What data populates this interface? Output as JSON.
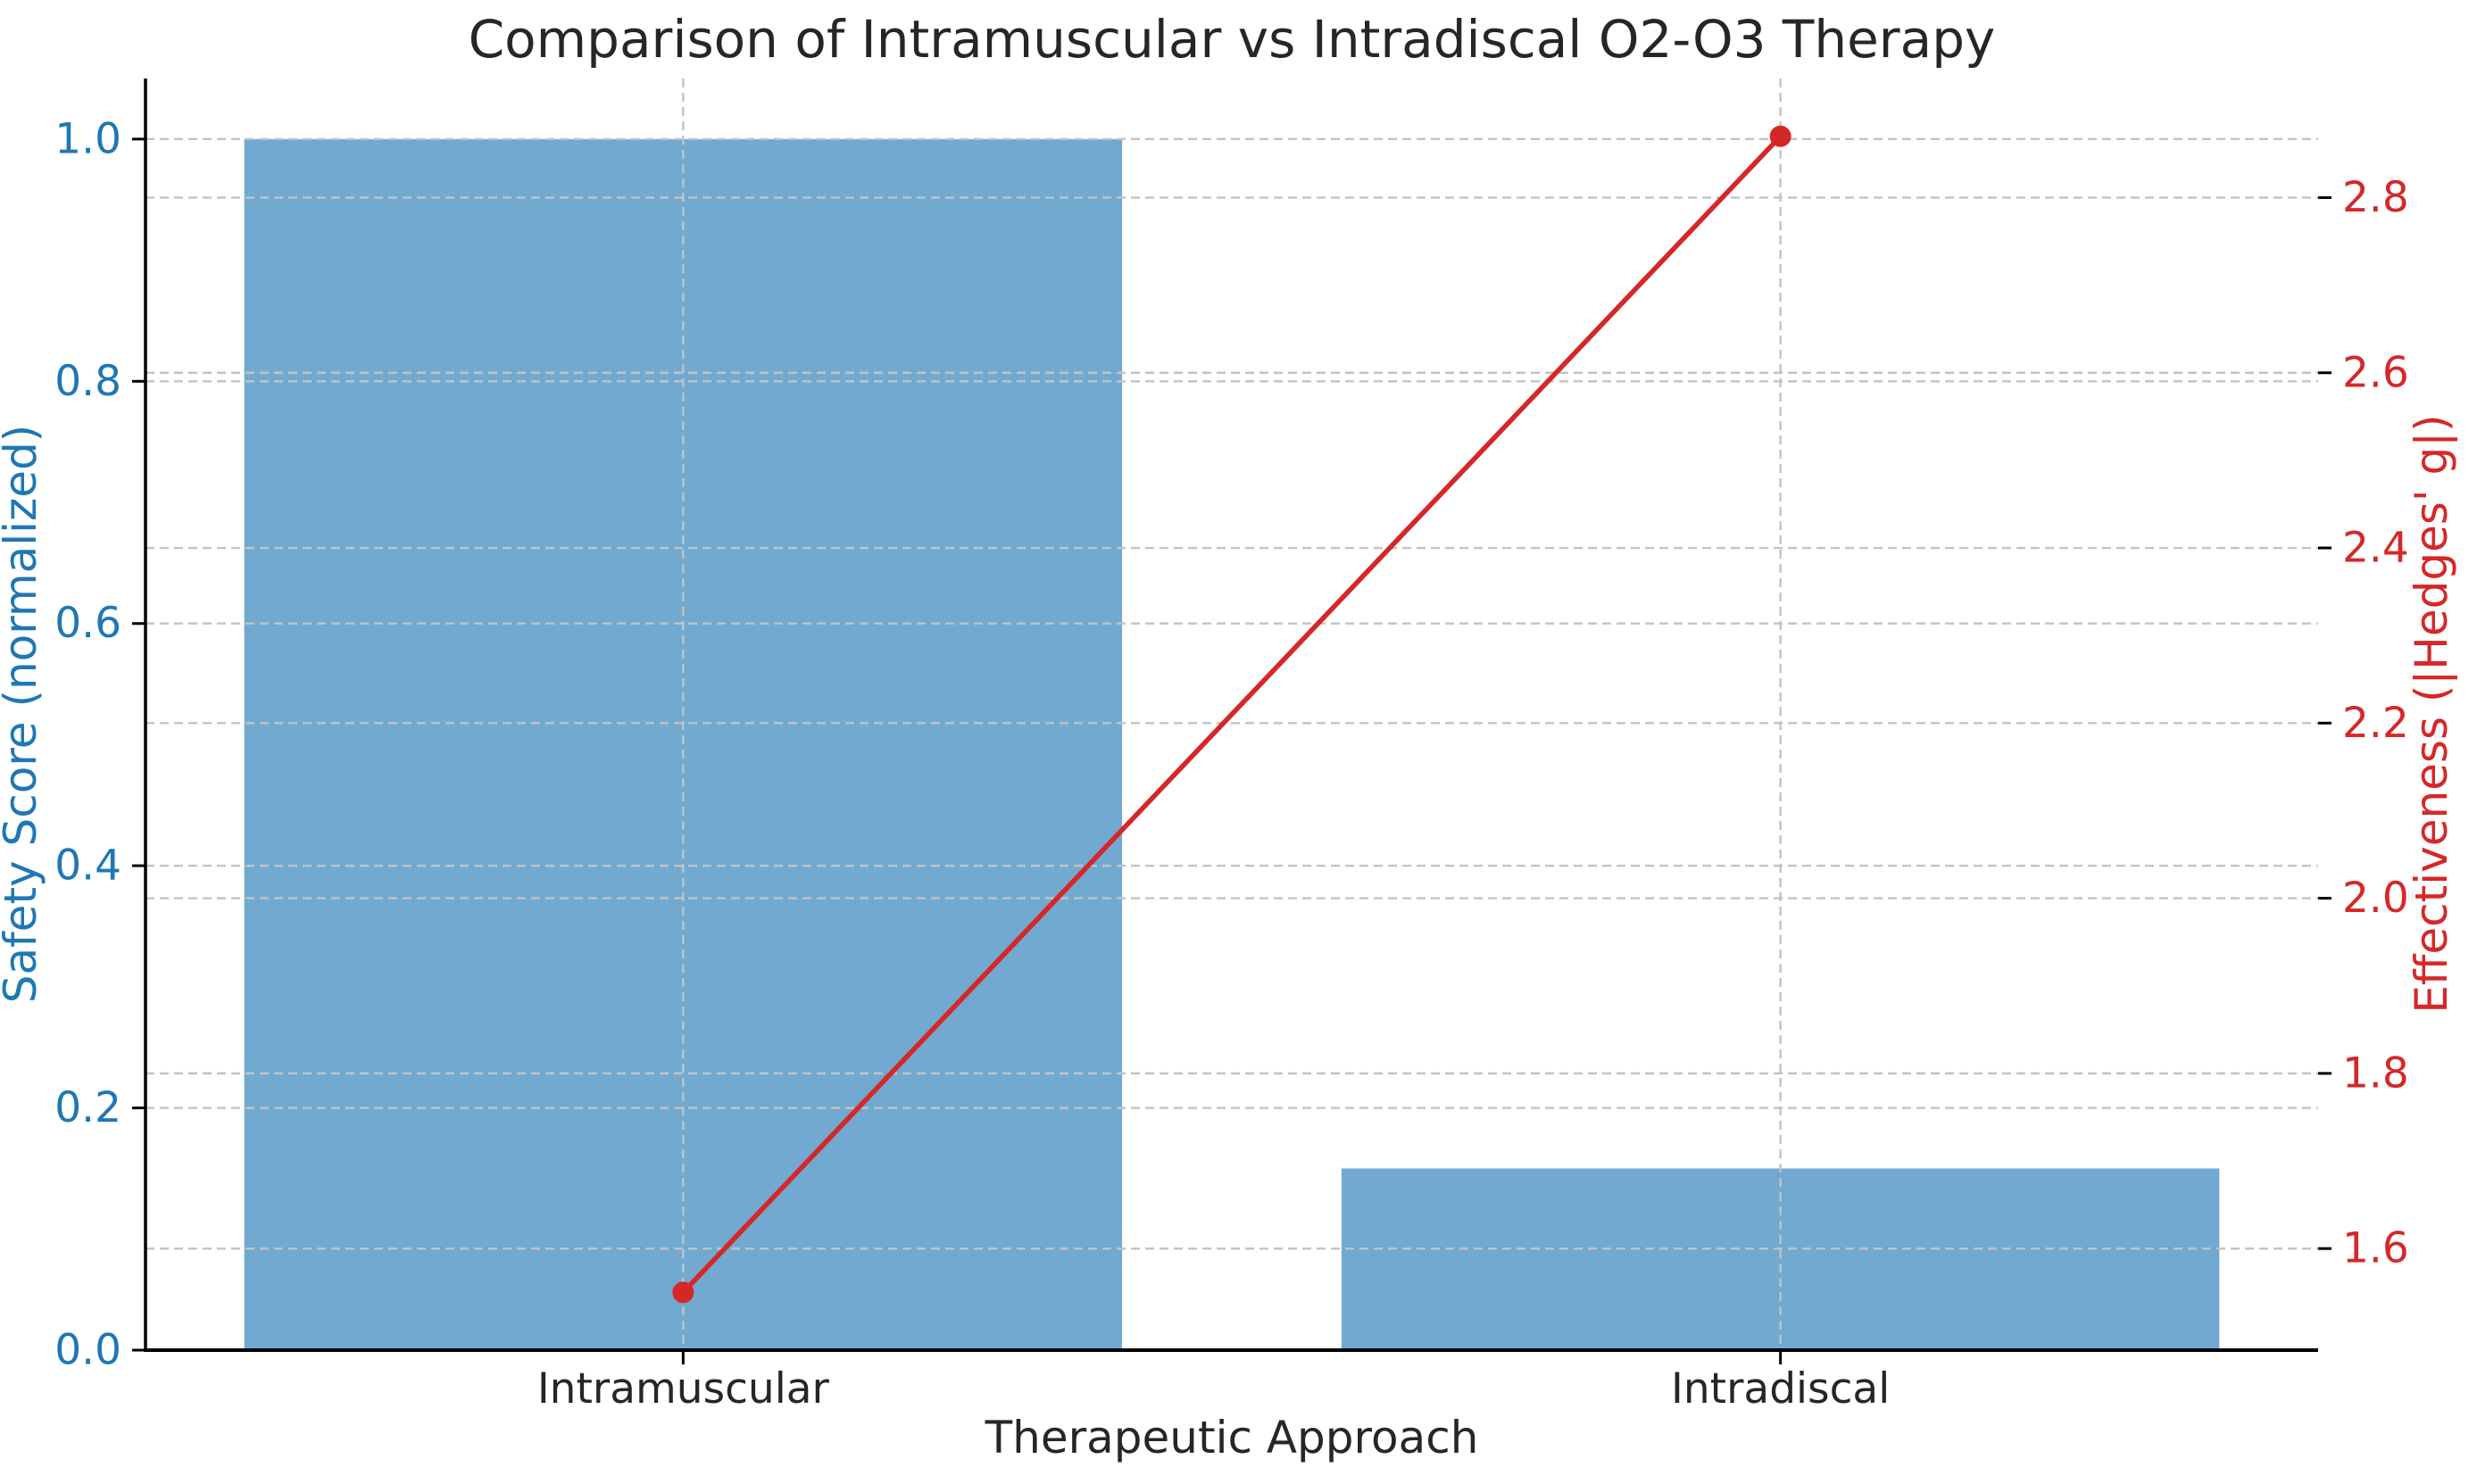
{
  "chart_data": {
    "type": "bar",
    "title": "Comparison of Intramuscular vs Intradiscal O2-O3 Therapy",
    "categories": [
      "Intramuscular",
      "Intradiscal"
    ],
    "xlabel": "Therapeutic Approach",
    "series": [
      {
        "name": "Safety Score (normalized)",
        "type": "bar",
        "axis": "left",
        "values": [
          1.0,
          0.15
        ],
        "color": "#71a9d0"
      },
      {
        "name": "Effectiveness (|Hedges' g|)",
        "type": "line",
        "axis": "right",
        "values": [
          1.55,
          2.87
        ],
        "color": "#d62728",
        "marker": "circle"
      }
    ],
    "left_axis": {
      "label": "Safety Score (normalized)",
      "color": "#1f77b4",
      "tick_labels": [
        "0.0",
        "0.2",
        "0.4",
        "0.6",
        "0.8",
        "1.0"
      ],
      "ylim": [
        0,
        1.05
      ]
    },
    "right_axis": {
      "label": "Effectiveness (|Hedges' g|)",
      "color": "#d62728",
      "tick_labels": [
        "1.6",
        "1.8",
        "2.0",
        "2.2",
        "2.4",
        "2.6",
        "2.8"
      ],
      "ylim": [
        1.484,
        2.936
      ]
    },
    "x_axis": {
      "tick_label_color": "#262626",
      "xlim": [
        -0.49,
        1.49
      ],
      "bar_width": 0.8
    },
    "grid": {
      "show": true,
      "color": "#c3c3c3",
      "style": "dashed"
    },
    "spine_color": "#000000",
    "background": "#ffffff"
  }
}
